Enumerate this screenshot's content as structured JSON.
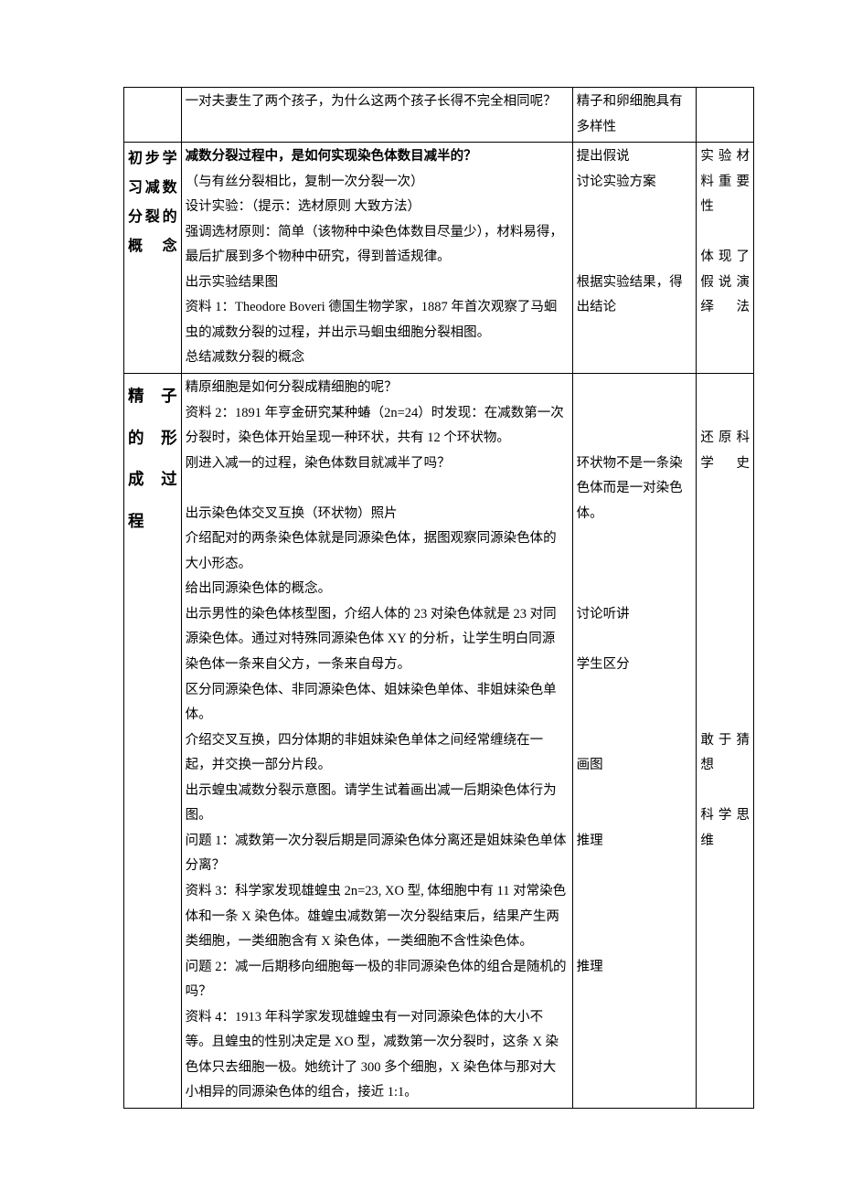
{
  "intro": {
    "teacher": "一对夫妻生了两个孩子，为什么这两个孩子长得不完全相同呢？",
    "student": "精子和卵细胞具有多样性"
  },
  "section1": {
    "title": "初步学习减数分裂的概念",
    "teacher": [
      "减数分裂过程中，是如何实现染色体数目减半的？",
      "（与有丝分裂相比，复制一次分裂一次）",
      "设计实验：（提示：选材原则 大致方法）",
      "强调选材原则：简单（该物种中染色体数目尽量少），材料易得，最后扩展到多个物种中研究，得到普适规律。",
      "出示实验结果图",
      "资料 1：Theodore Boveri 德国生物学家，1887 年首次观察了马蛔虫的减数分裂的过程，并出示马蛔虫细胞分裂相图。",
      "总结减数分裂的概念"
    ],
    "student": [
      "提出假说",
      "讨论实验方案",
      "",
      "",
      "",
      "根据实验结果，得出结论"
    ],
    "notes": [
      "实验材料重要性",
      "",
      "体现了假说演绎法"
    ]
  },
  "section2": {
    "title_lines": [
      "精子",
      "的形",
      "成过",
      "程"
    ],
    "teacher": [
      "精原细胞是如何分裂成精细胞的呢？",
      "资料 2：1891 年亨金研究某种蝽（2n=24）时发现：在减数第一次分裂时，染色体开始呈现一种环状，共有 12 个环状物。",
      "刚进入减一的过程，染色体数目就减半了吗？",
      "",
      "出示染色体交叉互换（环状物）照片",
      "介绍配对的两条染色体就是同源染色体，据图观察同源染色体的大小形态。",
      "给出同源染色体的概念。",
      "出示男性的染色体核型图，介绍人体的 23 对染色体就是 23 对同源染色体。通过对特殊同源染色体 XY 的分析，让学生明白同源染色体一条来自父方，一条来自母方。",
      "区分同源染色体、非同源染色体、姐妹染色单体、非姐妹染色单体。",
      "介绍交叉互换，四分体期的非姐妹染色单体之间经常缠绕在一起，并交换一部分片段。",
      "出示蝗虫减数分裂示意图。请学生试着画出减一后期染色体行为图。",
      "问题 1：减数第一次分裂后期是同源染色体分离还是姐妹染色单体分离？",
      "资料 3：科学家发现雄蝗虫 2n=23, XO 型, 体细胞中有 11 对常染色体和一条 X 染色体。雄蝗虫减数第一次分裂结束后，结果产生两类细胞，一类细胞含有 X 染色体，一类细胞不含性染色体。",
      "问题 2：减一后期移向细胞每一极的非同源染色体的组合是随机的吗？",
      "资料 4：1913 年科学家发现雄蝗虫有一对同源染色体的大小不等。且蝗虫的性别决定是 XO 型，减数第一次分裂时，这条 X 染色体只去细胞一极。她统计了 300 多个细胞，X 染色体与那对大小相异的同源染色体的组合，接近 1:1。"
    ],
    "student": {
      "s1": "环状物不是一条染色体而是一对染色体。",
      "s2": "讨论听讲",
      "s3": "学生区分",
      "s4": "画图",
      "s5": "推理",
      "s6": "推理"
    },
    "notes": {
      "n1": "还原科学史",
      "n2": "敢于猜想",
      "n3": "科学思维"
    }
  }
}
